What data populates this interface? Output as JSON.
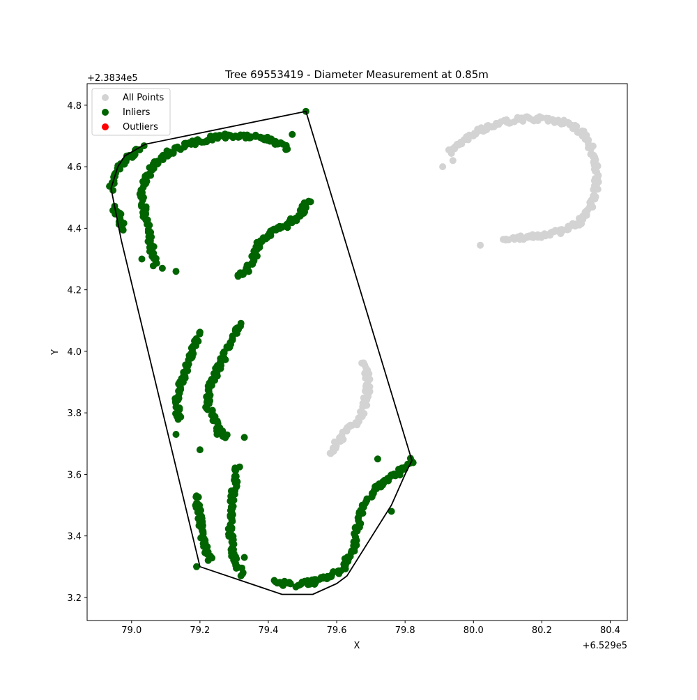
{
  "chart_data": {
    "type": "scatter",
    "title": "Tree 69553419 - Diameter Measurement at 0.85m",
    "xlabel": "X",
    "ylabel": "Y",
    "x_offset_label": "+6.529e5",
    "y_offset_label": "+2.3834e5",
    "xlim": [
      78.87,
      80.45
    ],
    "ylim": [
      3.125,
      4.87
    ],
    "xticks": [
      79.0,
      79.2,
      79.4,
      79.6,
      79.8,
      80.0,
      80.2,
      80.4
    ],
    "xtick_labels": [
      "79.0",
      "79.2",
      "79.4",
      "79.6",
      "79.8",
      "80.0",
      "80.2",
      "80.4"
    ],
    "yticks": [
      3.2,
      3.4,
      3.6,
      3.8,
      4.0,
      4.2,
      4.4,
      4.6,
      4.8
    ],
    "ytick_labels": [
      "3.2",
      "3.4",
      "3.6",
      "3.8",
      "4.0",
      "4.2",
      "4.4",
      "4.6",
      "4.8"
    ],
    "grid": false,
    "legend_position": "top-left",
    "series": [
      {
        "name": "All Points",
        "color": "#d3d3d3",
        "arcs": [
          [
            [
              79.93,
              4.65
            ],
            [
              79.97,
              4.68
            ],
            [
              80.02,
              4.72
            ],
            [
              80.08,
              4.745
            ],
            [
              80.15,
              4.755
            ],
            [
              80.22,
              4.755
            ],
            [
              80.28,
              4.74
            ],
            [
              80.32,
              4.71
            ],
            [
              80.345,
              4.66
            ],
            [
              80.36,
              4.6
            ],
            [
              80.36,
              4.53
            ],
            [
              80.345,
              4.47
            ],
            [
              80.31,
              4.42
            ],
            [
              80.26,
              4.39
            ],
            [
              80.2,
              4.375
            ],
            [
              80.14,
              4.368
            ],
            [
              80.09,
              4.365
            ]
          ],
          [
            [
              79.68,
              3.96
            ],
            [
              79.69,
              3.92
            ],
            [
              79.69,
              3.87
            ],
            [
              79.68,
              3.82
            ],
            [
              79.665,
              3.78
            ],
            [
              79.64,
              3.75
            ],
            [
              79.615,
              3.72
            ],
            [
              79.595,
              3.69
            ],
            [
              79.58,
              3.67
            ]
          ]
        ],
        "points": [
          [
            79.91,
            4.6
          ],
          [
            80.02,
            4.345
          ],
          [
            79.94,
            4.62
          ],
          [
            80.06,
            4.73
          ]
        ]
      },
      {
        "name": "Inliers",
        "color": "#006400",
        "arcs": [
          [
            [
              78.94,
              4.53
            ],
            [
              78.96,
              4.59
            ],
            [
              78.99,
              4.63
            ],
            [
              79.03,
              4.665
            ]
          ],
          [
            [
              78.95,
              4.47
            ],
            [
              78.97,
              4.42
            ],
            [
              78.98,
              4.39
            ]
          ],
          [
            [
              79.07,
              4.28
            ],
            [
              79.06,
              4.33
            ],
            [
              79.05,
              4.39
            ],
            [
              79.04,
              4.44
            ],
            [
              79.03,
              4.5
            ],
            [
              79.04,
              4.56
            ],
            [
              79.07,
              4.61
            ],
            [
              79.11,
              4.645
            ],
            [
              79.16,
              4.67
            ],
            [
              79.22,
              4.69
            ],
            [
              79.28,
              4.7
            ],
            [
              79.34,
              4.698
            ],
            [
              79.39,
              4.69
            ],
            [
              79.43,
              4.675
            ],
            [
              79.46,
              4.66
            ]
          ],
          [
            [
              79.31,
              4.245
            ],
            [
              79.34,
              4.27
            ],
            [
              79.36,
              4.31
            ],
            [
              79.37,
              4.35
            ],
            [
              79.4,
              4.38
            ],
            [
              79.44,
              4.4
            ],
            [
              79.48,
              4.43
            ],
            [
              79.5,
              4.46
            ],
            [
              79.52,
              4.49
            ]
          ],
          [
            [
              79.2,
              4.06
            ],
            [
              79.18,
              4.0
            ],
            [
              79.16,
              3.94
            ],
            [
              79.14,
              3.88
            ],
            [
              79.13,
              3.83
            ],
            [
              79.14,
              3.78
            ]
          ],
          [
            [
              79.32,
              4.09
            ],
            [
              79.29,
              4.03
            ],
            [
              79.26,
              3.96
            ],
            [
              79.23,
              3.89
            ],
            [
              79.22,
              3.83
            ],
            [
              79.24,
              3.78
            ],
            [
              79.26,
              3.74
            ],
            [
              79.28,
              3.72
            ]
          ],
          [
            [
              79.19,
              3.53
            ],
            [
              79.2,
              3.45
            ],
            [
              79.21,
              3.38
            ],
            [
              79.23,
              3.32
            ]
          ],
          [
            [
              79.31,
              3.62
            ],
            [
              79.3,
              3.55
            ],
            [
              79.29,
              3.47
            ],
            [
              79.29,
              3.4
            ],
            [
              79.3,
              3.33
            ],
            [
              79.32,
              3.28
            ]
          ],
          [
            [
              79.42,
              3.25
            ],
            [
              79.47,
              3.24
            ],
            [
              79.53,
              3.25
            ],
            [
              79.58,
              3.27
            ],
            [
              79.62,
              3.3
            ],
            [
              79.65,
              3.35
            ],
            [
              79.66,
              3.42
            ],
            [
              79.67,
              3.48
            ],
            [
              79.7,
              3.53
            ],
            [
              79.73,
              3.57
            ],
            [
              79.77,
              3.6
            ],
            [
              79.8,
              3.62
            ],
            [
              79.82,
              3.645
            ]
          ]
        ],
        "points": [
          [
            79.51,
            4.78
          ],
          [
            79.47,
            4.705
          ],
          [
            79.13,
            4.26
          ],
          [
            79.09,
            4.27
          ],
          [
            79.03,
            4.3
          ],
          [
            79.2,
            3.68
          ],
          [
            79.33,
            3.72
          ],
          [
            79.25,
            3.73
          ],
          [
            79.19,
            3.3
          ],
          [
            79.32,
            3.27
          ],
          [
            79.33,
            3.33
          ],
          [
            79.72,
            3.65
          ],
          [
            79.76,
            3.48
          ],
          [
            79.13,
            3.73
          ]
        ]
      },
      {
        "name": "Outliers",
        "color": "#ff0000",
        "arcs": [],
        "points": []
      }
    ],
    "hull": [
      [
        79.51,
        4.78
      ],
      [
        79.82,
        3.645
      ],
      [
        79.8,
        3.6
      ],
      [
        79.76,
        3.5
      ],
      [
        79.63,
        3.27
      ],
      [
        79.6,
        3.245
      ],
      [
        79.53,
        3.21
      ],
      [
        79.44,
        3.21
      ],
      [
        79.2,
        3.3
      ],
      [
        78.97,
        4.36
      ],
      [
        78.94,
        4.53
      ],
      [
        78.96,
        4.6
      ],
      [
        78.98,
        4.635
      ],
      [
        79.04,
        4.673
      ]
    ]
  }
}
